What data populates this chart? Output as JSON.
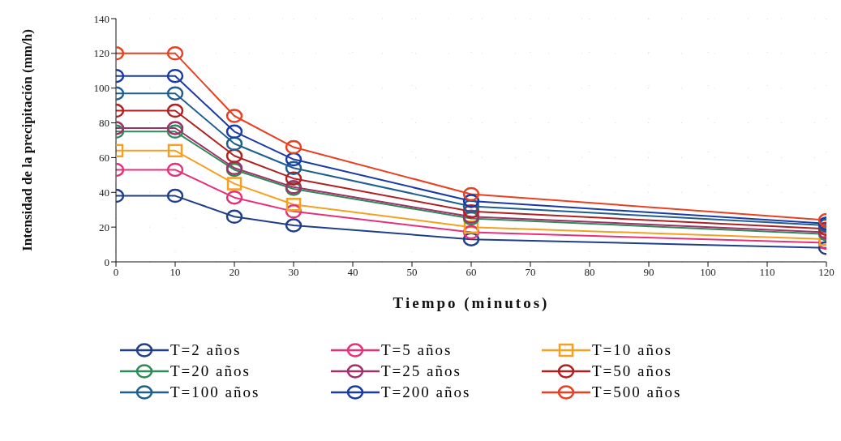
{
  "chart_data": {
    "type": "line",
    "xlabel": "Tiempo (minutos)",
    "ylabel": "Intensidad de la precipitación (mm/h)",
    "x": [
      0,
      10,
      20,
      30,
      60,
      120
    ],
    "xlim": [
      0,
      120
    ],
    "xticks": [
      0,
      10,
      20,
      30,
      40,
      50,
      60,
      70,
      80,
      90,
      100,
      110,
      120
    ],
    "ylim": [
      0,
      140
    ],
    "yticks": [
      0,
      20,
      40,
      60,
      80,
      100,
      120,
      140
    ],
    "grid": true,
    "legend": "bottom",
    "marker": "circle",
    "line_style": "solid",
    "series": [
      {
        "name": "T=2 años",
        "color": "#1f3f8a",
        "values": [
          38,
          38,
          26,
          21,
          13,
          8
        ]
      },
      {
        "name": "T=5 años",
        "color": "#e8307a",
        "values": [
          53,
          53,
          37,
          29,
          17,
          11
        ]
      },
      {
        "name": "T=10 años",
        "color": "#f5a020",
        "marker": "square",
        "values": [
          64,
          64,
          45,
          33,
          20,
          13
        ]
      },
      {
        "name": "T=20 años",
        "color": "#2e8b57",
        "values": [
          75,
          75,
          53,
          42,
          25,
          16
        ]
      },
      {
        "name": "T=25 años",
        "color": "#a0306a",
        "values": [
          77,
          77,
          54,
          43,
          26,
          17
        ]
      },
      {
        "name": "T=50 años",
        "color": "#b02020",
        "values": [
          87,
          87,
          61,
          48,
          29,
          19
        ]
      },
      {
        "name": "T=100 años",
        "color": "#1f5f8f",
        "values": [
          97,
          97,
          68,
          54,
          32,
          21
        ]
      },
      {
        "name": "T=200 años",
        "color": "#1a3aa8",
        "values": [
          107,
          107,
          75,
          59,
          35,
          22
        ]
      },
      {
        "name": "T=500 años",
        "color": "#e84020",
        "values": [
          120,
          120,
          84,
          66,
          39,
          24
        ]
      }
    ]
  }
}
